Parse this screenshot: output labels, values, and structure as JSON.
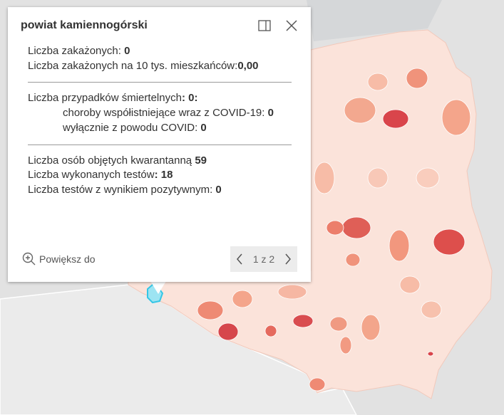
{
  "popup": {
    "title": "powiat kamiennogórski",
    "sections": [
      {
        "rows": [
          {
            "label": "Liczba zakażonych: ",
            "value": "0"
          },
          {
            "label": "Liczba zakażonych na 10 tys. mieszkańców:",
            "value": "0,00"
          }
        ]
      },
      {
        "rows": [
          {
            "label": "Liczba przypadków śmiertelnych",
            "value": ": 0:"
          },
          {
            "label": "choroby współistniejące wraz z COVID-19: ",
            "value": "0"
          },
          {
            "label": "wyłącznie z powodu COVID: ",
            "value": "0"
          }
        ]
      },
      {
        "rows": [
          {
            "label": "Liczba osób objętych kwarantanną ",
            "value": "59"
          },
          {
            "label": "Liczba wykonanych testów",
            "value": ": 18"
          },
          {
            "label": "Liczba testów z wynikiem pozytywnym: ",
            "value": "0"
          }
        ]
      }
    ],
    "zoom": "Powiększ do",
    "pager": "1 z 2"
  }
}
